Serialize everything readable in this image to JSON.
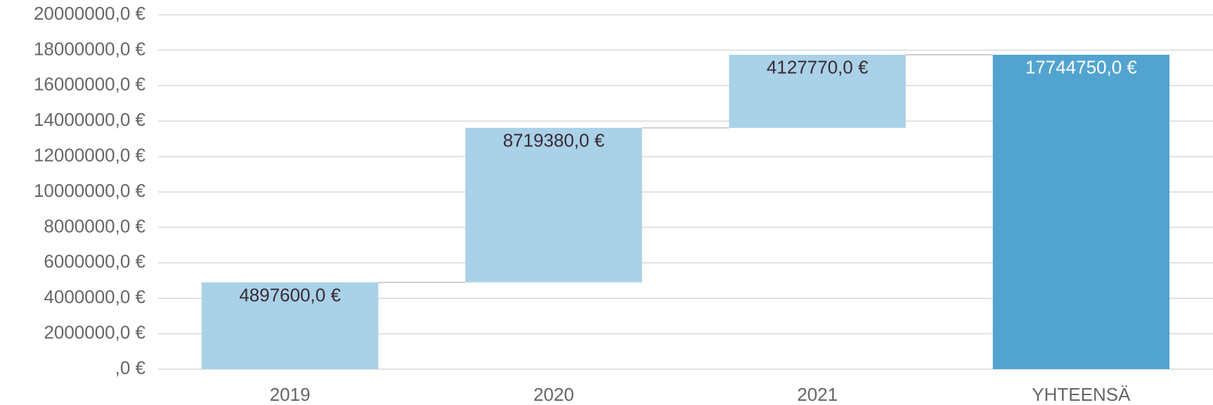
{
  "chart_data": {
    "type": "waterfall",
    "categories": [
      "2019",
      "2020",
      "2021",
      "YHTEENSÄ"
    ],
    "values": [
      4897600,
      8719380,
      4127770,
      17744750
    ],
    "value_labels": [
      "4897600,0 €",
      "8719380,0 €",
      "4127770,0 €",
      "17744750,0 €"
    ],
    "total": [
      false,
      false,
      false,
      true
    ],
    "colors": [
      "#a9d1e8",
      "#a9d1e8",
      "#a9d1e8",
      "#52a4d0"
    ],
    "label_colors": [
      "#3a2a34",
      "#3a2a34",
      "#3a2a34",
      "#ffffff"
    ],
    "ylim": [
      0,
      20000000
    ],
    "yticks": [
      {
        "value": 0,
        "label": ",0 €"
      },
      {
        "value": 2000000,
        "label": "2000000,0 €"
      },
      {
        "value": 4000000,
        "label": "4000000,0 €"
      },
      {
        "value": 6000000,
        "label": "6000000,0 €"
      },
      {
        "value": 8000000,
        "label": "8000000,0 €"
      },
      {
        "value": 10000000,
        "label": "10000000,0 €"
      },
      {
        "value": 12000000,
        "label": "12000000,0 €"
      },
      {
        "value": 14000000,
        "label": "14000000,0 €"
      },
      {
        "value": 16000000,
        "label": "16000000,0 €"
      },
      {
        "value": 18000000,
        "label": "18000000,0 €"
      },
      {
        "value": 20000000,
        "label": "20000000,0 €"
      }
    ],
    "grid": true
  }
}
